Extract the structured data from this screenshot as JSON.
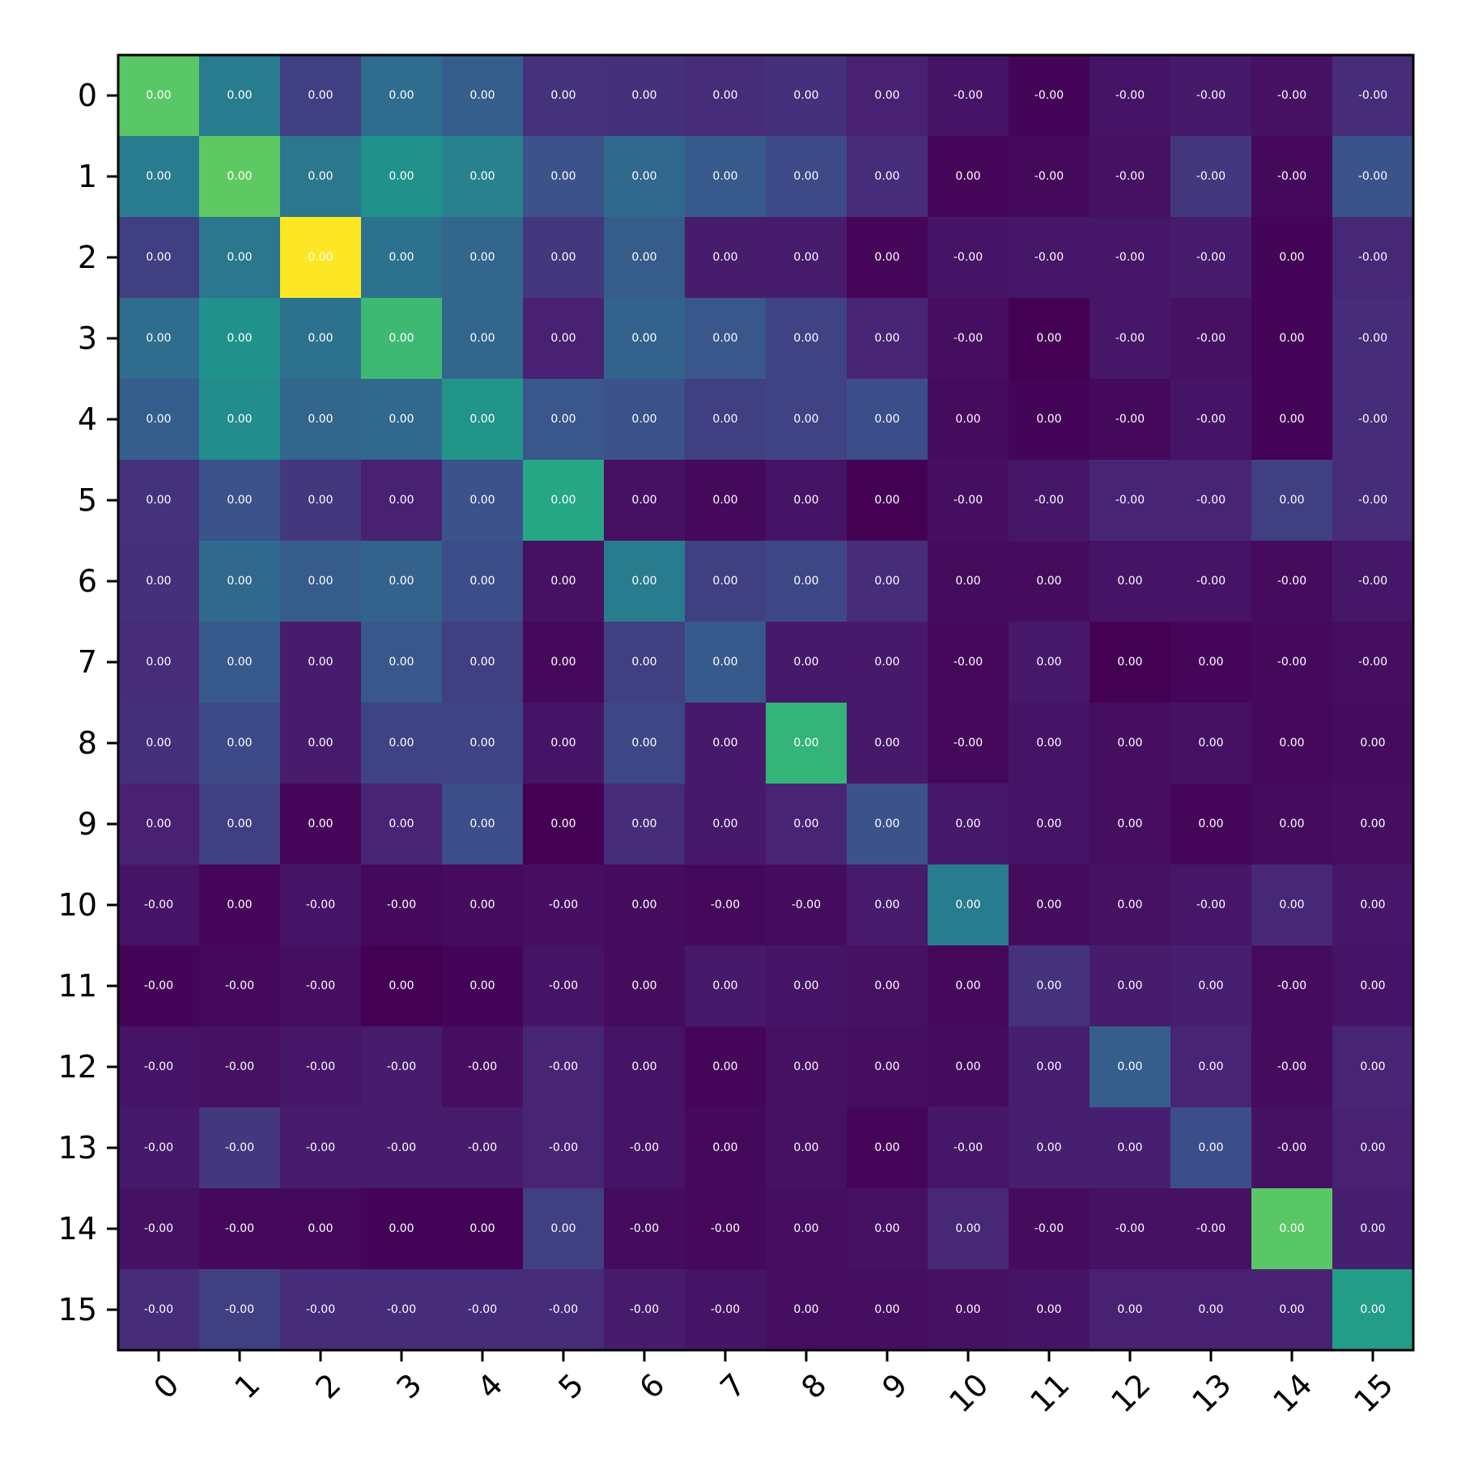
{
  "chart_data": {
    "type": "heatmap",
    "title": "",
    "xlabel": "",
    "ylabel": "",
    "colormap": "viridis",
    "x_tick_labels": [
      "0",
      "1",
      "2",
      "3",
      "4",
      "5",
      "6",
      "7",
      "8",
      "9",
      "10",
      "11",
      "12",
      "13",
      "14",
      "15"
    ],
    "y_tick_labels": [
      "0",
      "1",
      "2",
      "3",
      "4",
      "5",
      "6",
      "7",
      "8",
      "9",
      "10",
      "11",
      "12",
      "13",
      "14",
      "15"
    ],
    "x_tick_rotation_deg": 45,
    "grid": false,
    "color_intensity": [
      [
        0.74,
        0.42,
        0.2,
        0.36,
        0.3,
        0.17,
        0.16,
        0.15,
        0.16,
        0.12,
        0.07,
        0.01,
        0.07,
        0.09,
        0.06,
        0.15
      ],
      [
        0.42,
        0.75,
        0.4,
        0.5,
        0.44,
        0.25,
        0.34,
        0.28,
        0.23,
        0.15,
        0.02,
        0.03,
        0.06,
        0.18,
        0.03,
        0.26
      ],
      [
        0.2,
        0.4,
        1.0,
        0.38,
        0.33,
        0.18,
        0.29,
        0.1,
        0.1,
        0.02,
        0.07,
        0.08,
        0.08,
        0.1,
        0.01,
        0.14
      ],
      [
        0.36,
        0.5,
        0.38,
        0.68,
        0.33,
        0.12,
        0.32,
        0.27,
        0.21,
        0.13,
        0.05,
        0.0,
        0.08,
        0.06,
        0.01,
        0.15
      ],
      [
        0.3,
        0.48,
        0.33,
        0.34,
        0.52,
        0.27,
        0.25,
        0.2,
        0.21,
        0.24,
        0.04,
        0.01,
        0.03,
        0.07,
        0.01,
        0.15
      ],
      [
        0.17,
        0.25,
        0.18,
        0.12,
        0.25,
        0.6,
        0.06,
        0.03,
        0.07,
        0.0,
        0.05,
        0.08,
        0.13,
        0.13,
        0.2,
        0.15
      ],
      [
        0.16,
        0.34,
        0.29,
        0.32,
        0.24,
        0.06,
        0.42,
        0.2,
        0.22,
        0.15,
        0.04,
        0.04,
        0.07,
        0.07,
        0.04,
        0.08
      ],
      [
        0.15,
        0.28,
        0.1,
        0.27,
        0.2,
        0.03,
        0.2,
        0.28,
        0.09,
        0.09,
        0.03,
        0.09,
        0.0,
        0.02,
        0.03,
        0.05
      ],
      [
        0.16,
        0.23,
        0.1,
        0.21,
        0.21,
        0.07,
        0.22,
        0.09,
        0.66,
        0.09,
        0.03,
        0.07,
        0.05,
        0.06,
        0.03,
        0.04
      ],
      [
        0.12,
        0.2,
        0.02,
        0.13,
        0.24,
        0.0,
        0.15,
        0.09,
        0.13,
        0.25,
        0.09,
        0.07,
        0.05,
        0.02,
        0.04,
        0.05
      ],
      [
        0.07,
        0.02,
        0.07,
        0.03,
        0.04,
        0.05,
        0.04,
        0.03,
        0.04,
        0.1,
        0.42,
        0.04,
        0.06,
        0.08,
        0.14,
        0.08
      ],
      [
        0.01,
        0.03,
        0.05,
        0.0,
        0.01,
        0.07,
        0.04,
        0.09,
        0.07,
        0.06,
        0.03,
        0.17,
        0.1,
        0.11,
        0.04,
        0.07
      ],
      [
        0.07,
        0.06,
        0.08,
        0.1,
        0.05,
        0.13,
        0.07,
        0.02,
        0.06,
        0.05,
        0.04,
        0.11,
        0.3,
        0.13,
        0.04,
        0.13
      ],
      [
        0.09,
        0.18,
        0.1,
        0.1,
        0.1,
        0.13,
        0.07,
        0.03,
        0.06,
        0.02,
        0.08,
        0.11,
        0.11,
        0.24,
        0.06,
        0.12
      ],
      [
        0.06,
        0.03,
        0.03,
        0.01,
        0.01,
        0.2,
        0.04,
        0.03,
        0.05,
        0.06,
        0.14,
        0.04,
        0.06,
        0.06,
        0.74,
        0.11
      ],
      [
        0.15,
        0.2,
        0.15,
        0.15,
        0.15,
        0.15,
        0.1,
        0.07,
        0.05,
        0.05,
        0.06,
        0.07,
        0.12,
        0.12,
        0.12,
        0.55
      ]
    ],
    "cell_labels": [
      [
        "0.00",
        "0.00",
        "0.00",
        "0.00",
        "0.00",
        "0.00",
        "0.00",
        "0.00",
        "0.00",
        "0.00",
        "-0.00",
        "-0.00",
        "-0.00",
        "-0.00",
        "-0.00",
        "-0.00"
      ],
      [
        "0.00",
        "0.00",
        "0.00",
        "0.00",
        "0.00",
        "0.00",
        "0.00",
        "0.00",
        "0.00",
        "0.00",
        "0.00",
        "-0.00",
        "-0.00",
        "-0.00",
        "-0.00",
        "-0.00"
      ],
      [
        "0.00",
        "0.00",
        "0.00",
        "0.00",
        "0.00",
        "0.00",
        "0.00",
        "0.00",
        "0.00",
        "0.00",
        "-0.00",
        "-0.00",
        "-0.00",
        "-0.00",
        "0.00",
        "-0.00"
      ],
      [
        "0.00",
        "0.00",
        "0.00",
        "0.00",
        "0.00",
        "0.00",
        "0.00",
        "0.00",
        "0.00",
        "0.00",
        "-0.00",
        "0.00",
        "-0.00",
        "-0.00",
        "0.00",
        "-0.00"
      ],
      [
        "0.00",
        "0.00",
        "0.00",
        "0.00",
        "0.00",
        "0.00",
        "0.00",
        "0.00",
        "0.00",
        "0.00",
        "0.00",
        "0.00",
        "-0.00",
        "-0.00",
        "0.00",
        "-0.00"
      ],
      [
        "0.00",
        "0.00",
        "0.00",
        "0.00",
        "0.00",
        "0.00",
        "0.00",
        "0.00",
        "0.00",
        "0.00",
        "-0.00",
        "-0.00",
        "-0.00",
        "-0.00",
        "0.00",
        "-0.00"
      ],
      [
        "0.00",
        "0.00",
        "0.00",
        "0.00",
        "0.00",
        "0.00",
        "0.00",
        "0.00",
        "0.00",
        "0.00",
        "0.00",
        "0.00",
        "0.00",
        "-0.00",
        "-0.00",
        "-0.00"
      ],
      [
        "0.00",
        "0.00",
        "0.00",
        "0.00",
        "0.00",
        "0.00",
        "0.00",
        "0.00",
        "0.00",
        "0.00",
        "-0.00",
        "0.00",
        "0.00",
        "0.00",
        "-0.00",
        "-0.00"
      ],
      [
        "0.00",
        "0.00",
        "0.00",
        "0.00",
        "0.00",
        "0.00",
        "0.00",
        "0.00",
        "0.00",
        "0.00",
        "-0.00",
        "0.00",
        "0.00",
        "0.00",
        "0.00",
        "0.00"
      ],
      [
        "0.00",
        "0.00",
        "0.00",
        "0.00",
        "0.00",
        "0.00",
        "0.00",
        "0.00",
        "0.00",
        "0.00",
        "0.00",
        "0.00",
        "0.00",
        "0.00",
        "0.00",
        "0.00"
      ],
      [
        "-0.00",
        "0.00",
        "-0.00",
        "-0.00",
        "0.00",
        "-0.00",
        "0.00",
        "-0.00",
        "-0.00",
        "0.00",
        "0.00",
        "0.00",
        "0.00",
        "-0.00",
        "0.00",
        "0.00"
      ],
      [
        "-0.00",
        "-0.00",
        "-0.00",
        "0.00",
        "0.00",
        "-0.00",
        "0.00",
        "0.00",
        "0.00",
        "0.00",
        "0.00",
        "0.00",
        "0.00",
        "0.00",
        "-0.00",
        "0.00"
      ],
      [
        "-0.00",
        "-0.00",
        "-0.00",
        "-0.00",
        "-0.00",
        "-0.00",
        "0.00",
        "0.00",
        "0.00",
        "0.00",
        "0.00",
        "0.00",
        "0.00",
        "0.00",
        "-0.00",
        "0.00"
      ],
      [
        "-0.00",
        "-0.00",
        "-0.00",
        "-0.00",
        "-0.00",
        "-0.00",
        "-0.00",
        "0.00",
        "0.00",
        "0.00",
        "-0.00",
        "0.00",
        "0.00",
        "0.00",
        "-0.00",
        "0.00"
      ],
      [
        "-0.00",
        "-0.00",
        "0.00",
        "0.00",
        "0.00",
        "0.00",
        "-0.00",
        "-0.00",
        "0.00",
        "0.00",
        "0.00",
        "-0.00",
        "-0.00",
        "-0.00",
        "0.00",
        "0.00"
      ],
      [
        "-0.00",
        "-0.00",
        "-0.00",
        "-0.00",
        "-0.00",
        "-0.00",
        "-0.00",
        "-0.00",
        "0.00",
        "0.00",
        "0.00",
        "0.00",
        "0.00",
        "0.00",
        "0.00",
        "0.00"
      ]
    ]
  }
}
